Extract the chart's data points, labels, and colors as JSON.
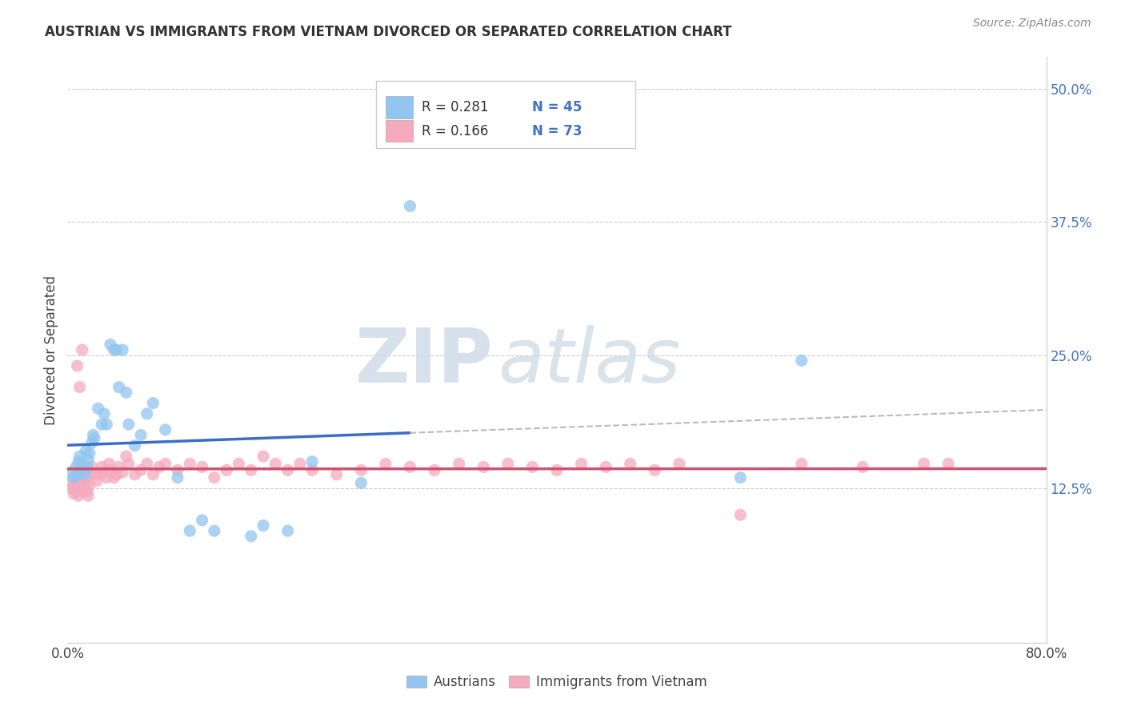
{
  "title": "AUSTRIAN VS IMMIGRANTS FROM VIETNAM DIVORCED OR SEPARATED CORRELATION CHART",
  "source": "Source: ZipAtlas.com",
  "ylabel": "Divorced or Separated",
  "xlim": [
    0.0,
    0.8
  ],
  "ylim": [
    -0.02,
    0.53
  ],
  "y_ticks_right": [
    0.125,
    0.25,
    0.375,
    0.5
  ],
  "y_tick_labels_right": [
    "12.5%",
    "25.0%",
    "37.5%",
    "50.0%"
  ],
  "legend_r1": "R = 0.281",
  "legend_n1": "N = 45",
  "legend_r2": "R = 0.166",
  "legend_n2": "N = 73",
  "color_austrians": "#92C5F0",
  "color_vietnam": "#F4AABC",
  "color_line_austrians": "#3A6EC4",
  "color_line_vietnam": "#D05070",
  "color_dashed_line": "#BBBBBB",
  "background_color": "#FFFFFF",
  "watermark_zip": "ZIP",
  "watermark_atlas": "atlas",
  "austrians_x": [
    0.003,
    0.005,
    0.007,
    0.008,
    0.009,
    0.01,
    0.011,
    0.012,
    0.013,
    0.014,
    0.015,
    0.016,
    0.017,
    0.018,
    0.02,
    0.021,
    0.022,
    0.025,
    0.028,
    0.03,
    0.032,
    0.035,
    0.038,
    0.04,
    0.042,
    0.045,
    0.048,
    0.05,
    0.055,
    0.06,
    0.065,
    0.07,
    0.08,
    0.09,
    0.1,
    0.11,
    0.12,
    0.15,
    0.16,
    0.18,
    0.2,
    0.24,
    0.28,
    0.55,
    0.6
  ],
  "austrians_y": [
    0.14,
    0.135,
    0.145,
    0.138,
    0.15,
    0.155,
    0.142,
    0.148,
    0.143,
    0.138,
    0.16,
    0.145,
    0.152,
    0.158,
    0.168,
    0.175,
    0.172,
    0.2,
    0.185,
    0.195,
    0.185,
    0.26,
    0.255,
    0.255,
    0.22,
    0.255,
    0.215,
    0.185,
    0.165,
    0.175,
    0.195,
    0.205,
    0.18,
    0.135,
    0.085,
    0.095,
    0.085,
    0.08,
    0.09,
    0.085,
    0.15,
    0.13,
    0.39,
    0.135,
    0.245
  ],
  "vietnam_x": [
    0.003,
    0.004,
    0.005,
    0.006,
    0.007,
    0.008,
    0.009,
    0.01,
    0.011,
    0.012,
    0.013,
    0.014,
    0.015,
    0.016,
    0.017,
    0.018,
    0.019,
    0.02,
    0.022,
    0.024,
    0.026,
    0.028,
    0.03,
    0.032,
    0.034,
    0.036,
    0.038,
    0.04,
    0.042,
    0.045,
    0.048,
    0.05,
    0.055,
    0.06,
    0.065,
    0.07,
    0.075,
    0.08,
    0.09,
    0.1,
    0.11,
    0.12,
    0.13,
    0.14,
    0.15,
    0.16,
    0.17,
    0.18,
    0.19,
    0.2,
    0.22,
    0.24,
    0.26,
    0.28,
    0.3,
    0.32,
    0.34,
    0.36,
    0.38,
    0.4,
    0.42,
    0.44,
    0.46,
    0.48,
    0.5,
    0.55,
    0.6,
    0.65,
    0.7,
    0.72,
    0.008,
    0.01,
    0.012
  ],
  "vietnam_y": [
    0.13,
    0.125,
    0.12,
    0.128,
    0.122,
    0.13,
    0.118,
    0.135,
    0.125,
    0.13,
    0.122,
    0.128,
    0.135,
    0.122,
    0.118,
    0.128,
    0.14,
    0.145,
    0.138,
    0.132,
    0.138,
    0.145,
    0.14,
    0.135,
    0.148,
    0.142,
    0.135,
    0.138,
    0.145,
    0.14,
    0.155,
    0.148,
    0.138,
    0.142,
    0.148,
    0.138,
    0.145,
    0.148,
    0.142,
    0.148,
    0.145,
    0.135,
    0.142,
    0.148,
    0.142,
    0.155,
    0.148,
    0.142,
    0.148,
    0.142,
    0.138,
    0.142,
    0.148,
    0.145,
    0.142,
    0.148,
    0.145,
    0.148,
    0.145,
    0.142,
    0.148,
    0.145,
    0.148,
    0.142,
    0.148,
    0.1,
    0.148,
    0.145,
    0.148,
    0.148,
    0.24,
    0.22,
    0.255
  ]
}
